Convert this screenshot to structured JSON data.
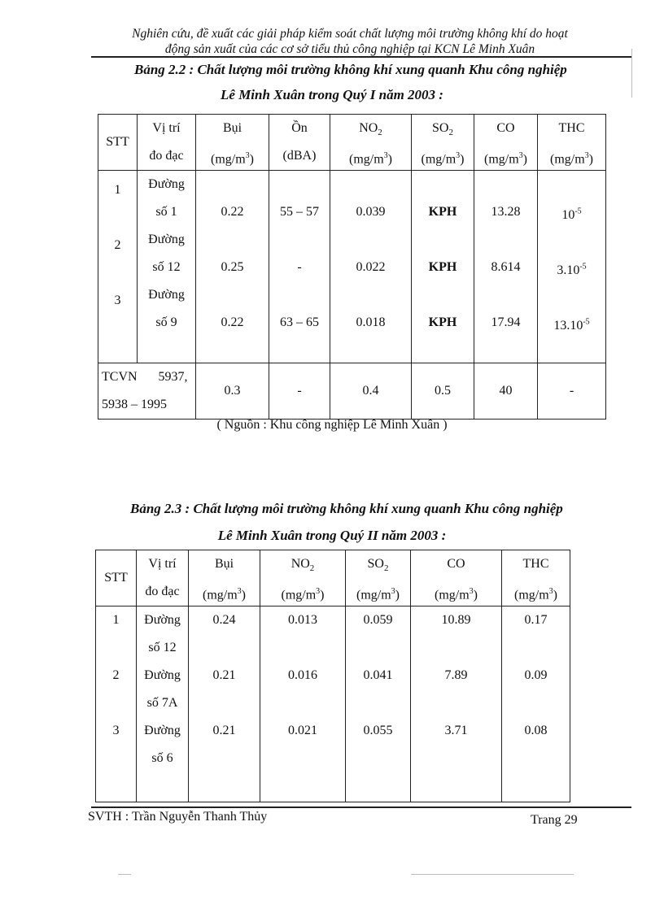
{
  "running_header": {
    "line1": "Nghiên cứu, đề xuất các giải pháp kiểm soát chất lượng môi trường không khí do hoạt",
    "line2": "động sản xuất của các cơ sở tiểu thủ công nghiệp tại KCN Lê Minh Xuân"
  },
  "table1": {
    "caption_line1": "Bảng 2.2 : Chất lượng môi trường không khí xung quanh Khu công nghiệp",
    "caption_line2": "Lê Minh Xuân trong Quý I năm 2003 :",
    "headers": [
      {
        "name": "STT"
      },
      {
        "name": "Vị trí",
        "line2": "đo đạc"
      },
      {
        "name": "Bụi",
        "unit_pre": "(mg/m",
        "unit_sup": "3",
        "unit_post": ")"
      },
      {
        "name": "Ồn",
        "line2": "(dBA)"
      },
      {
        "name": "NO",
        "sub": "2",
        "unit_pre": "(mg/m",
        "unit_sup": "3",
        "unit_post": ")"
      },
      {
        "name": "SO",
        "sub": "2",
        "unit_pre": "(mg/m",
        "unit_sup": "3",
        "unit_post": ")"
      },
      {
        "name": "CO",
        "unit_pre": "(mg/m",
        "unit_sup": "3",
        "unit_post": ")"
      },
      {
        "name": "THC",
        "unit_pre": "(mg/m",
        "unit_sup": "3",
        "unit_post": ")"
      }
    ],
    "rows": [
      {
        "stt": "1",
        "loc1": "Đường",
        "loc2": "số 1",
        "bui": "0.22",
        "on": "55 – 57",
        "no2": "0.039",
        "so2": "KPH",
        "co": "13.28",
        "thc": {
          "base": "10",
          "exp": "-5"
        }
      },
      {
        "stt": "2",
        "loc1": "Đường",
        "loc2": "số 12",
        "bui": "0.25",
        "on": "-",
        "no2": "0.022",
        "so2": "KPH",
        "co": "8.614",
        "thc": {
          "base": "3.10",
          "exp": "-5"
        }
      },
      {
        "stt": "3",
        "loc1": "Đường",
        "loc2": "số 9",
        "bui": "0.22",
        "on": "63 – 65",
        "no2": "0.018",
        "so2": "KPH",
        "co": "17.94",
        "thc": {
          "base": "13.10",
          "exp": "-5"
        }
      }
    ],
    "standard": {
      "label_line1": "TCVN 5937,",
      "label_line2": "5938 – 1995",
      "bui": "0.3",
      "on": "-",
      "no2": "0.4",
      "so2": "0.5",
      "co": "40",
      "thc": "-"
    },
    "source": "( Nguồn : Khu công nghiệp Lê Minh Xuân )"
  },
  "table2": {
    "caption_line1": "Bảng 2.3 : Chất lượng môi trường không khí xung quanh Khu công nghiệp",
    "caption_line2": "Lê Minh Xuân trong Quý II năm 2003 :",
    "headers": [
      {
        "name": "STT"
      },
      {
        "name": "Vị trí",
        "line2": "đo đạc"
      },
      {
        "name": "Bụi",
        "unit_pre": "(mg/m",
        "unit_sup": "3",
        "unit_post": ")"
      },
      {
        "name": "NO",
        "sub": "2",
        "unit_pre": "(mg/m",
        "unit_sup": "3",
        "unit_post": ")"
      },
      {
        "name": "SO",
        "sub": "2",
        "unit_pre": "(mg/m",
        "unit_sup": "3",
        "unit_post": ")"
      },
      {
        "name": "CO",
        "unit_pre": "(mg/m",
        "unit_sup": "3",
        "unit_post": ")"
      },
      {
        "name": "THC",
        "unit_pre": "(mg/m",
        "unit_sup": "3",
        "unit_post": ")"
      }
    ],
    "rows": [
      {
        "stt": "1",
        "loc1": "Đường",
        "loc2": "số 12",
        "bui": "0.24",
        "no2": "0.013",
        "so2": "0.059",
        "co": "10.89",
        "thc": "0.17"
      },
      {
        "stt": "2",
        "loc1": "Đường",
        "loc2": "số 7A",
        "bui": "0.21",
        "no2": "0.016",
        "so2": "0.041",
        "co": "7.89",
        "thc": "0.09"
      },
      {
        "stt": "3",
        "loc1": "Đường",
        "loc2": "số 6",
        "bui": "0.21",
        "no2": "0.021",
        "so2": "0.055",
        "co": "3.71",
        "thc": "0.08"
      }
    ]
  },
  "footer": {
    "author": "SVTH : Trần Nguyễn Thanh Thủy",
    "page": "Trang 29"
  }
}
